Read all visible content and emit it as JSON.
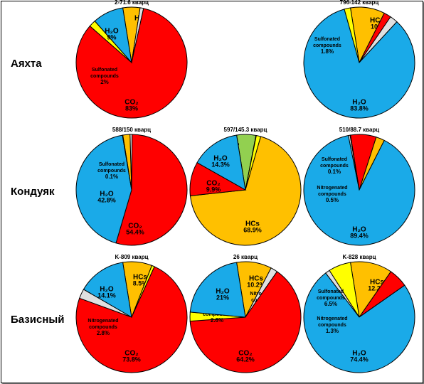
{
  "colors": {
    "HCs": "#FFC000",
    "CO2": "#FF0000",
    "Nitrogenated": "#E0E0E0",
    "Sulfonated": "#FFFF00",
    "H2O": "#1AAAE8",
    "Other": "#92D050"
  },
  "rows": [
    {
      "label": "Аяхта"
    },
    {
      "label": "Кондуяк"
    },
    {
      "label": "Базисный"
    }
  ],
  "chart_data": [
    {
      "type": "pie",
      "title": "2-71.6 кварц",
      "row": 0,
      "col": 0,
      "slices": [
        {
          "key": "HCs",
          "value": 5,
          "label": "HCs",
          "value_label": "5%"
        },
        {
          "key": "Nitrogenated",
          "value": 1,
          "label": "Nitrogenated compounds",
          "value_label": "1%"
        },
        {
          "key": "CO2",
          "value": 83,
          "label": "CO₂",
          "value_label": "83%"
        },
        {
          "key": "Sulfonated",
          "value": 2,
          "label": "Sulfonated compounds",
          "value_label": "2%"
        },
        {
          "key": "H2O",
          "value": 9,
          "label": "H₂O",
          "value_label": "9%"
        }
      ]
    },
    {
      "type": "pie",
      "title": "796-142 кварц",
      "row": 0,
      "col": 2,
      "slices": [
        {
          "key": "HCs",
          "value": 10,
          "label": "HCs",
          "value_label": "10%"
        },
        {
          "key": "CO2",
          "value": 2.1,
          "label": "CO₂",
          "value_label": "2.1%"
        },
        {
          "key": "Nitrogenated",
          "value": 2.3,
          "label": "Nitrogenated compounds",
          "value_label": "2.3%"
        },
        {
          "key": "H2O",
          "value": 83.8,
          "label": "H₂O",
          "value_label": "83.8%"
        },
        {
          "key": "Sulfonated",
          "value": 1.8,
          "label": "Sulfonated compounds",
          "value_label": "1.8%"
        }
      ]
    },
    {
      "type": "pie",
      "title": "588/150 кварц",
      "row": 1,
      "col": 0,
      "slices": [
        {
          "key": "HCs",
          "value": 2.1,
          "label": "HCs",
          "value_label": "2.1%"
        },
        {
          "key": "Nitrogenated",
          "value": 0.6,
          "label": "Nitrogenated compounds",
          "value_label": "0.6%"
        },
        {
          "key": "CO2",
          "value": 54.4,
          "label": "CO₂",
          "value_label": "54.4%"
        },
        {
          "key": "H2O",
          "value": 42.8,
          "label": "H₂O",
          "value_label": "42.8%"
        },
        {
          "key": "Sulfonated",
          "value": 0.1,
          "label": "Sulfonated compounds",
          "value_label": "0.1%"
        }
      ]
    },
    {
      "type": "pie",
      "title": "597/145.3 кварц",
      "row": 1,
      "col": 1,
      "slices": [
        {
          "key": "Other",
          "value": 5.6,
          "label": "",
          "value_label": "5.6%"
        },
        {
          "key": "Nitrogenated",
          "value": 0.1,
          "label": "Nitrogenated compounds",
          "value_label": ""
        },
        {
          "key": "Sulfonated",
          "value": 1.3,
          "label": "Sulfonated compounds",
          "value_label": "1.3%"
        },
        {
          "key": "HCs",
          "value": 68.9,
          "label": "HCs",
          "value_label": "68.9%"
        },
        {
          "key": "CO2",
          "value": 9.9,
          "label": "CO₂",
          "value_label": "9.9%"
        },
        {
          "key": "H2O",
          "value": 14.3,
          "label": "H₂O",
          "value_label": "14.3%"
        }
      ]
    },
    {
      "type": "pie",
      "title": "510/88.7 кварц",
      "row": 1,
      "col": 2,
      "slices": [
        {
          "key": "CO2",
          "value": 7.5,
          "label": "CO₂",
          "value_label": "7.5%"
        },
        {
          "key": "HCs",
          "value": 2.5,
          "label": "HCs",
          "value_label": "2.5%"
        },
        {
          "key": "H2O",
          "value": 89.4,
          "label": "H₂O",
          "value_label": "89.4%"
        },
        {
          "key": "Nitrogenated",
          "value": 0.5,
          "label": "Nitrogenated compounds",
          "value_label": "0.5%"
        },
        {
          "key": "Sulfonated",
          "value": 0.1,
          "label": "Sulfonated compounds",
          "value_label": "0.1%"
        }
      ]
    },
    {
      "type": "pie",
      "title": "K-809 кварц",
      "row": 2,
      "col": 0,
      "slices": [
        {
          "key": "HCs",
          "value": 8.5,
          "label": "HCs",
          "value_label": "8.5%"
        },
        {
          "key": "Sulfonated",
          "value": 0.8,
          "label": "Sulfonated compounds",
          "value_label": "0.8%"
        },
        {
          "key": "CO2",
          "value": 73.8,
          "label": "CO₂",
          "value_label": "73.8%"
        },
        {
          "key": "Nitrogenated",
          "value": 2.8,
          "label": "Nitrogenated compounds",
          "value_label": "2.8%"
        },
        {
          "key": "H2O",
          "value": 14.1,
          "label": "H₂O",
          "value_label": "14.1%"
        }
      ]
    },
    {
      "type": "pie",
      "title": "26 кварц",
      "row": 2,
      "col": 1,
      "slices": [
        {
          "key": "HCs",
          "value": 10.2,
          "label": "HCs",
          "value_label": "10.2%"
        },
        {
          "key": "Nitrogenated",
          "value": 2,
          "label": "Nitrogenated compounds",
          "value_label": "2%"
        },
        {
          "key": "CO2",
          "value": 64.2,
          "label": "CO₂",
          "value_label": "64.2%"
        },
        {
          "key": "Sulfonated",
          "value": 2.6,
          "label": "Sulfonated compounds",
          "value_label": "2.6%"
        },
        {
          "key": "H2O",
          "value": 21,
          "label": "H₂O",
          "value_label": "21%"
        }
      ]
    },
    {
      "type": "pie",
      "title": "K-828 кварц",
      "row": 2,
      "col": 2,
      "slices": [
        {
          "key": "HCs",
          "value": 12.2,
          "label": "HCs",
          "value_label": "12.2%"
        },
        {
          "key": "CO2",
          "value": 5.6,
          "label": "CO₂",
          "value_label": "5.6%"
        },
        {
          "key": "H2O",
          "value": 74.4,
          "label": "H₂O",
          "value_label": "74.4%"
        },
        {
          "key": "Nitrogenated",
          "value": 1.3,
          "label": "Nitrogenated compounds",
          "value_label": "1.3%"
        },
        {
          "key": "Sulfonated",
          "value": 6.5,
          "label": "Sulfonated compounds",
          "value_label": "6.5%"
        }
      ]
    }
  ]
}
